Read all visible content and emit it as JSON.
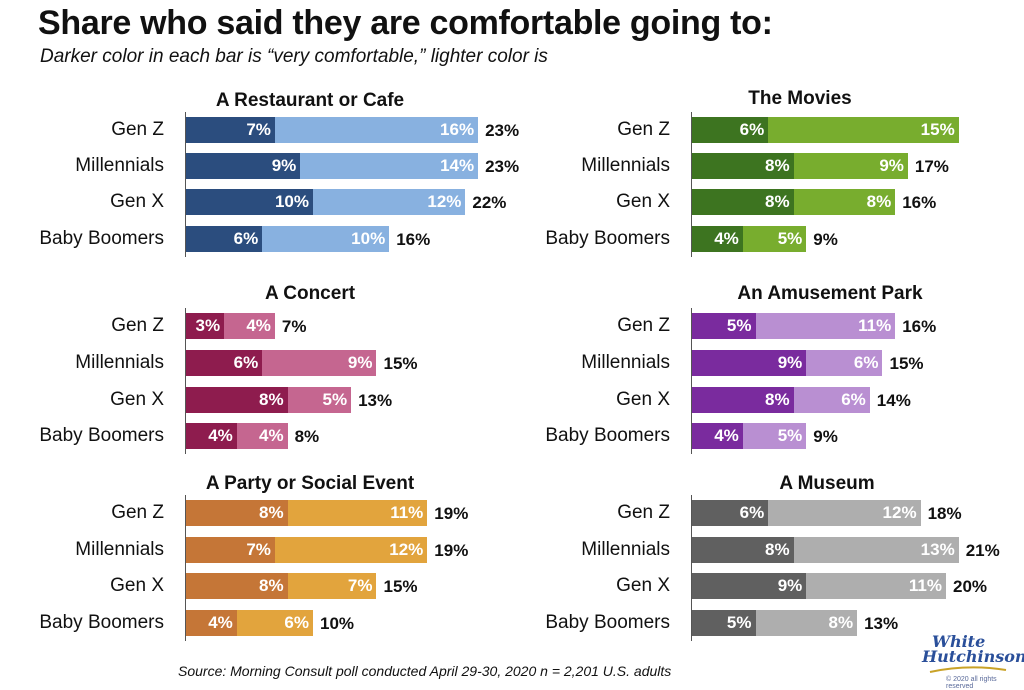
{
  "title": "Share who said they are comfortable going to:",
  "subtitle": "Darker color in each bar is “very comfortable,” lighter color is",
  "source": "Source: Morning Consult poll conducted April 29-30, 2020 n = 2,201 U.S. adults",
  "logo": {
    "line1": "White",
    "line2": "Hutchinson",
    "small": "© 2020 all rights reserved"
  },
  "chart_data": [
    {
      "type": "bar",
      "title": "A Restaurant or Cafe",
      "stacked": true,
      "orientation": "horizontal",
      "categories": [
        "Gen Z",
        "Millennials",
        "Gen X",
        "Baby Boomers"
      ],
      "series": [
        {
          "values": [
            7,
            9,
            10,
            6
          ],
          "color": "#2b4d7e"
        },
        {
          "values": [
            16,
            14,
            12,
            10
          ],
          "color": "#88b1e0"
        }
      ],
      "totals": [
        23,
        23,
        22,
        16
      ],
      "segment_labels": [
        [
          "7%",
          "16%"
        ],
        [
          "9%",
          "14%"
        ],
        [
          "10%",
          "12%"
        ],
        [
          "6%",
          "10%"
        ]
      ],
      "total_labels": [
        "23%",
        "23%",
        "22%",
        "16%"
      ]
    },
    {
      "type": "bar",
      "title": "The Movies",
      "stacked": true,
      "orientation": "horizontal",
      "categories": [
        "Gen Z",
        "Millennials",
        "Gen X",
        "Baby Boomers"
      ],
      "series": [
        {
          "values": [
            6,
            8,
            8,
            4
          ],
          "color": "#3d7420"
        },
        {
          "values": [
            15,
            9,
            8,
            5
          ],
          "color": "#78ad2e"
        }
      ],
      "totals": [
        null,
        17,
        16,
        9
      ],
      "segment_labels": [
        [
          "6%",
          "15%"
        ],
        [
          "8%",
          "9%"
        ],
        [
          "8%",
          "8%"
        ],
        [
          "4%",
          "5%"
        ]
      ],
      "total_labels": [
        "",
        "17%",
        "16%",
        "9%"
      ]
    },
    {
      "type": "bar",
      "title": "A Concert",
      "stacked": true,
      "orientation": "horizontal",
      "categories": [
        "Gen Z",
        "Millennials",
        "Gen X",
        "Baby Boomers"
      ],
      "series": [
        {
          "values": [
            3,
            6,
            8,
            4
          ],
          "color": "#8e1c4e"
        },
        {
          "values": [
            4,
            9,
            5,
            4
          ],
          "color": "#c56690"
        }
      ],
      "totals": [
        7,
        15,
        13,
        8
      ],
      "segment_labels": [
        [
          "3%",
          "4%"
        ],
        [
          "6%",
          "9%"
        ],
        [
          "8%",
          "5%"
        ],
        [
          "4%",
          "4%"
        ]
      ],
      "total_labels": [
        "7%",
        "15%",
        "13%",
        "8%"
      ]
    },
    {
      "type": "bar",
      "title": "An Amusement Park",
      "stacked": true,
      "orientation": "horizontal",
      "categories": [
        "Gen Z",
        "Millennials",
        "Gen X",
        "Baby Boomers"
      ],
      "series": [
        {
          "values": [
            5,
            9,
            8,
            4
          ],
          "color": "#7a2b9e"
        },
        {
          "values": [
            11,
            6,
            6,
            5
          ],
          "color": "#b98fd2"
        }
      ],
      "totals": [
        16,
        15,
        14,
        9
      ],
      "segment_labels": [
        [
          "5%",
          "11%"
        ],
        [
          "9%",
          "6%"
        ],
        [
          "8%",
          "6%"
        ],
        [
          "4%",
          "5%"
        ]
      ],
      "total_labels": [
        "16%",
        "15%",
        "14%",
        "9%"
      ]
    },
    {
      "type": "bar",
      "title": "A Party or Social Event",
      "stacked": true,
      "orientation": "horizontal",
      "categories": [
        "Gen Z",
        "Millennials",
        "Gen X",
        "Baby Boomers"
      ],
      "series": [
        {
          "values": [
            8,
            7,
            8,
            4
          ],
          "color": "#c57637"
        },
        {
          "values": [
            11,
            12,
            7,
            6
          ],
          "color": "#e2a43d"
        }
      ],
      "totals": [
        19,
        19,
        15,
        10
      ],
      "segment_labels": [
        [
          "8%",
          "11%"
        ],
        [
          "7%",
          "12%"
        ],
        [
          "8%",
          "7%"
        ],
        [
          "4%",
          "6%"
        ]
      ],
      "total_labels": [
        "19%",
        "19%",
        "15%",
        "10%"
      ]
    },
    {
      "type": "bar",
      "title": "A Museum",
      "stacked": true,
      "orientation": "horizontal",
      "categories": [
        "Gen Z",
        "Millennials",
        "Gen X",
        "Baby Boomers"
      ],
      "series": [
        {
          "values": [
            6,
            8,
            9,
            5
          ],
          "color": "#606060"
        },
        {
          "values": [
            12,
            13,
            11,
            8
          ],
          "color": "#aeaeae"
        }
      ],
      "totals": [
        18,
        21,
        20,
        13
      ],
      "segment_labels": [
        [
          "6%",
          "12%"
        ],
        [
          "8%",
          "13%"
        ],
        [
          "9%",
          "11%"
        ],
        [
          "5%",
          "8%"
        ]
      ],
      "total_labels": [
        "18%",
        "21%",
        "20%",
        "13%"
      ]
    }
  ]
}
